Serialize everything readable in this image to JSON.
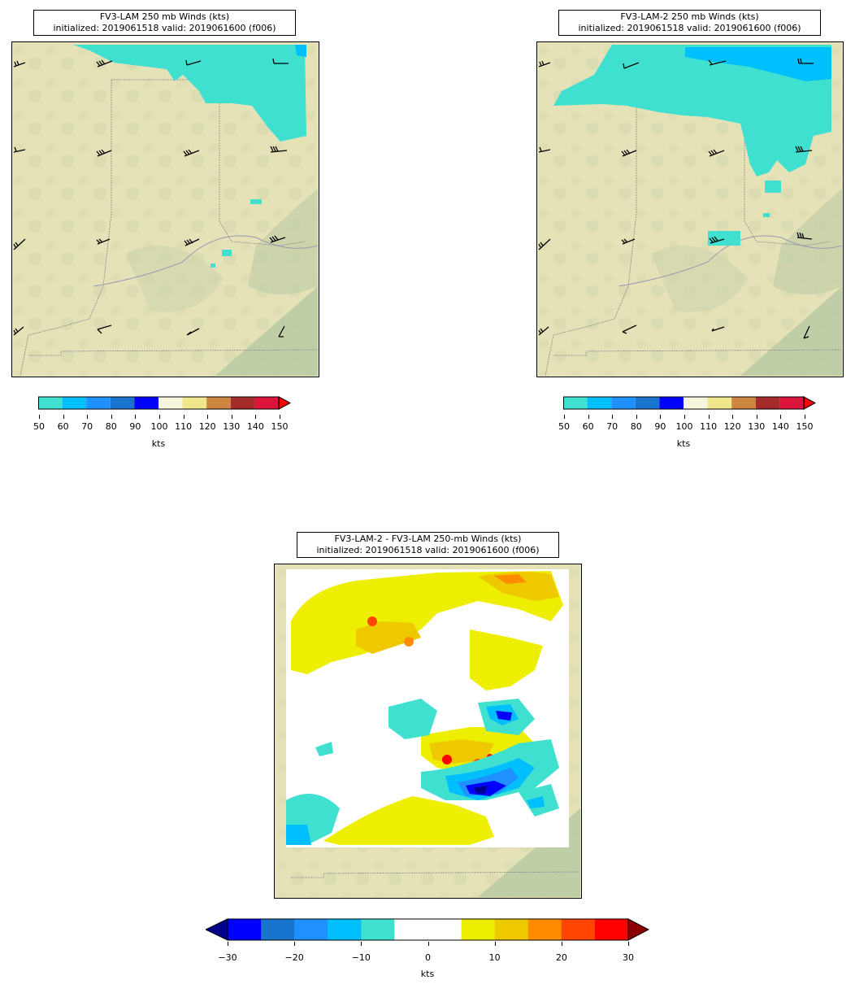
{
  "panels": {
    "top_left": {
      "title_line1": "FV3-LAM 250 mb Winds (kts)",
      "title_line2": "initialized: 2019061518 valid: 2019061600 (f006)"
    },
    "top_right": {
      "title_line1": "FV3-LAM-2 250 mb Winds (kts)",
      "title_line2": "initialized: 2019061518 valid: 2019061600 (f006)"
    },
    "bottom": {
      "title_line1": "FV3-LAM-2 - FV3-LAM 250-mb Winds (kts)",
      "title_line2": "initialized: 2019061518 valid: 2019061600 (f006)"
    }
  },
  "colorbars": {
    "wind": {
      "unit_label": "kts",
      "ticks": [
        "50",
        "60",
        "70",
        "80",
        "90",
        "100",
        "110",
        "120",
        "130",
        "140",
        "150"
      ],
      "colors": [
        "#40e0d0",
        "#00bfff",
        "#1e90ff",
        "#1874cd",
        "#0000ff",
        "#f5f5dc",
        "#f0e68c",
        "#cd853f",
        "#a52a2a",
        "#dc143c"
      ],
      "extend_color": "#ff0000"
    },
    "diff": {
      "unit_label": "kts",
      "ticks": [
        "−30",
        "−20",
        "−10",
        "0",
        "10",
        "20",
        "30"
      ],
      "colors": [
        "#0000ff",
        "#1874cd",
        "#1e90ff",
        "#00bfff",
        "#40e0d0",
        "#ffffff",
        "#ffffff",
        "#eeee00",
        "#eec900",
        "#ff8c00",
        "#ff4500",
        "#ff0000"
      ],
      "extend_low_color": "#00008b",
      "extend_high_color": "#8b0000"
    }
  }
}
